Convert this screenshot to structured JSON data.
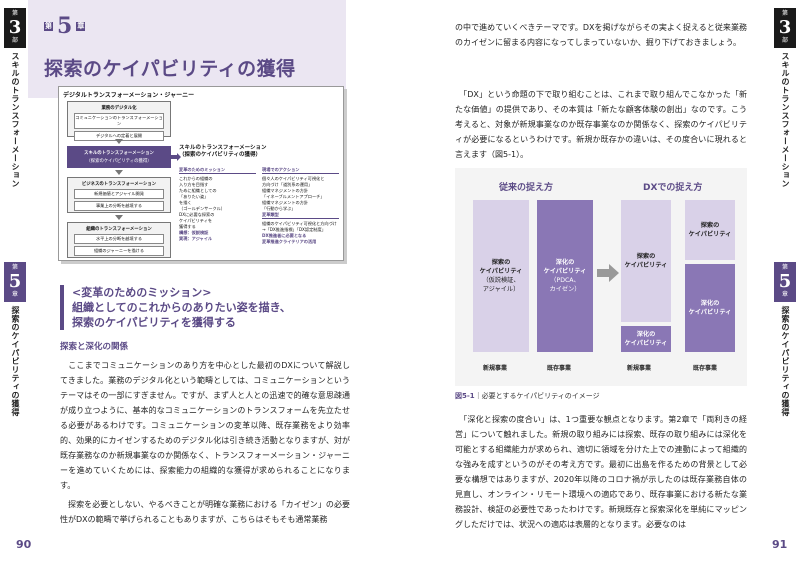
{
  "left": {
    "tab_top": {
      "part_small_top": "第",
      "part_num": "3",
      "part_small_bottom": "部",
      "label": "スキルのトランスフォーメーション"
    },
    "tab_chapter": {
      "small_top": "第",
      "num": "5",
      "small_bottom": "章",
      "label": "探索のケイパビリティの獲得"
    },
    "chapter_prefix": "第",
    "chapter_num": "5",
    "chapter_suffix": "章",
    "chapter_title": "探索のケイパビリティの獲得",
    "diagram": {
      "title": "デジタルトランスフォーメーション・ジャーニー",
      "boxes": [
        {
          "head": "業務のデジタル化",
          "items": [
            "コミュニケーションのトランスフォーメーション",
            "デジタルへの定着と展開"
          ]
        },
        {
          "head": "スキルのトランスフォーメーション",
          "items": [
            "（探索のケイパビリティの獲得）"
          ]
        },
        {
          "head": "ビジネスのトランスフォーメーション",
          "items": [
            "新規価値とアジャイル開発",
            "事業上の分断を越境する"
          ]
        },
        {
          "head": "組織のトランスフォーメーション",
          "items": [
            "水平上の分断を越境する",
            "組織のジャーニーを描ける"
          ]
        }
      ],
      "focus_title_1": "スキルのトランスフォーメーション",
      "focus_title_2": "（探索のケイパビリティの獲得）",
      "col1_head": "変革のためのミッション",
      "col1_lines": [
        "これからの組織の",
        "入り方を目指す",
        "ために組織としての",
        "「ありたい姿」",
        "を描く",
        "（ゴールデンサークル）",
        "",
        "DXに必要な探索の",
        "ケイパビリティを",
        "獲得する"
      ],
      "col1_plus": [
        "構想：仮説検証",
        "実現：アジャイル"
      ],
      "col2_head": "現場でのアクション",
      "col2_lines": [
        "個々人のケイパビリティ可視化と",
        "方向づけ「道別系の運用」",
        "組織マネジメントの方針",
        "「イネーブルメントアプローチ」",
        "組織マネジメントの方針",
        "「行動から学ぶ」"
      ],
      "col2_head2": "変革類型",
      "col2_lines2": [
        "組織のケイパビリティ可視化と方向づけ",
        "→「DX推進指標」「DX認定制度」"
      ],
      "col2_plus": [
        "DX推進者に必要となる",
        "変革推進クライテリアの活用"
      ]
    },
    "mission_line1": "<変革のためのミッション>",
    "mission_line2": "組織としてのこれからのありたい姿を描き、",
    "mission_line3": "探索のケイパビリティを獲得する",
    "subhead": "探索と深化の関係",
    "body1": "　ここまでコミュニケーションのあり方を中心とした最初のDXについて解説してきました。業務のデジタル化という範疇としては、コミュニケーションというテーマはその一部にすぎません。ですが、まず人と人との迅速で的確な意思疎通が成り立つように、基本的なコミュニケーションのトランスフォームを先立たせる必要があるわけです。コミュニケーションの変革以降、既存業務をより効率的、効果的にカイゼンするためのデジタル化は引き続き活動となりますが、対が既存業務なのか新規事業なのか関係なく、トランスフォーメーション・ジャーニーを進めていくためには、探索能力の組織的な獲得が求められることになります。",
    "body2": "　探索を必要としない、やるべきことが明確な業務における「カイゼン」の必要性がDXの範疇で挙げられることもありますが、こちらはそもそも通常業務",
    "page_number": "90"
  },
  "right": {
    "tab_top": {
      "part_small_top": "第",
      "part_num": "3",
      "part_small_bottom": "部",
      "label": "スキルのトランスフォーメーション"
    },
    "tab_chapter": {
      "small_top": "第",
      "num": "5",
      "small_bottom": "章",
      "label": "探索のケイパビリティの獲得"
    },
    "body1": "の中で進めていくべきテーマです。DXを掲げながらその実よく捉えると従来業務のカイゼンに留まる内容になってしまっていないか、掘り下げておきましょう。",
    "body2": "　「DX」という命題の下で取り組むことは、これまで取り組んでこなかった「新たな価値」の提供であり、その本質は「新たな顧客体験の創出」なのです。こう考えると、対象が新規事業なのか既存事業なのか関係なく、探索のケイパビリティが必要になるというわけです。新規か既存かの違いは、その度合いに現れると言えます（図5-1）。",
    "figure": {
      "left_label": "従来の捉え方",
      "right_label": "DXでの捉え方",
      "bar_a_title": "探索の\nケイパビリティ",
      "bar_a_sub": "（仮説検証、\nアジャイル）",
      "bar_b_title": "深化の\nケイパビリティ",
      "bar_b_sub": "（PDCA、\nカイゼン）",
      "bar_c_title": "探索の\nケイパビリティ",
      "bar_d_title": "深化の\nケイパビリティ",
      "bar_e_title": "探索の\nケイパビリティ",
      "bar_f_title": "深化の\nケイパビリティ",
      "cat_new": "新規事業",
      "cat_existing": "既存事業"
    },
    "fig_caption_no": "図5-1",
    "fig_caption_text": "｜必要とするケイパビリティのイメージ",
    "body3": "　「深化と探索の度合い」は、1つ重要な観点となります。第2章で「両利きの経営」について触れました。新規の取り組みには探索、既存の取り組みには深化を可能とする組織能力が求められ、適切に領域を分けた上での連動によって組織的な強みを成すというのがその考え方です。最初に出島を作るための背景として必要な構想ではありますが、2020年以降のコロナ禍が示したのは既存業務自体の見直し、オンライン・リモート環境への適応であり、既存事業における新たな業務設計、検証の必要性であったわけです。新規既存と探索深化を単純にマッピングしただけでは、状況への適応は表層的となります。必要なのは",
    "page_number": "91"
  },
  "colors": {
    "accent": "#5b4a86",
    "light": "#d9d1e8",
    "mid": "#8a77b5"
  }
}
